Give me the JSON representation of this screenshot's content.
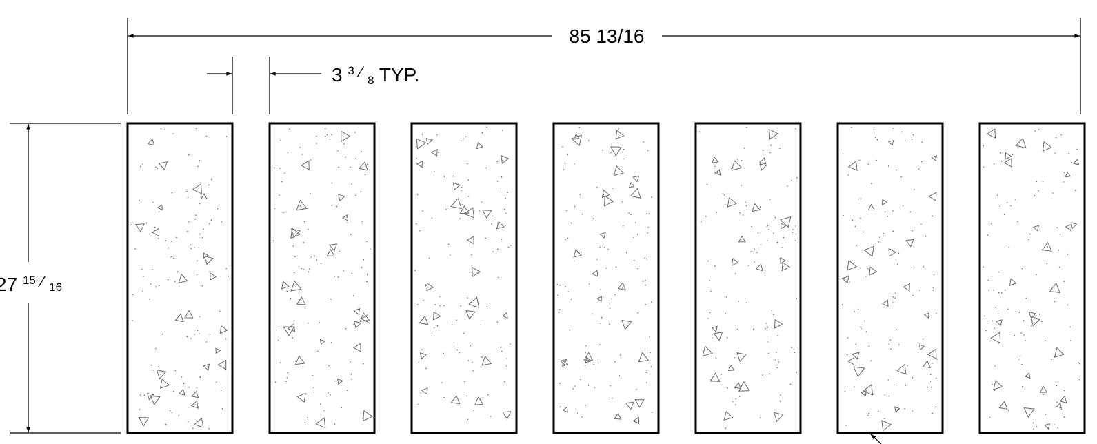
{
  "overall_width_label": "85 13/16",
  "spacing_label": {
    "main": "3",
    "frac_num": "3",
    "frac_den": "8",
    "suffix": " TYP."
  },
  "height_label": {
    "main": "27",
    "frac_num": "15",
    "frac_den": "16"
  },
  "panel_count": 7,
  "colors": {
    "line": "#000000",
    "hatch": "#6a6a6a",
    "background": "#ffffff"
  },
  "panel_fill_pattern": "concrete-hatch"
}
